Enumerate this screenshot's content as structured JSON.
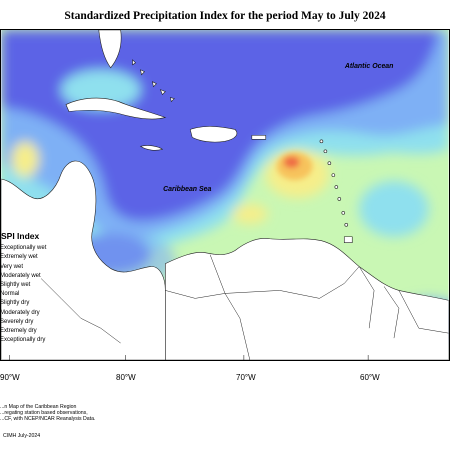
{
  "title": "Standardized Precipitation Index for the period May to July 2024",
  "map": {
    "ocean_label": "Atlantic Ocean",
    "sea_label": "Caribbean Sea",
    "colors": {
      "very_wet": "#5b64e6",
      "moderately_wet": "#7eb0f5",
      "slightly_wet": "#8fe0ee",
      "normal": "#c9f7b4",
      "slightly_dry": "#f6ee8a",
      "moderately_dry": "#f7c25c",
      "severely_dry": "#ef6d45",
      "land": "#ffffff"
    }
  },
  "x_axis": {
    "ticks": [
      "90°W",
      "80°W",
      "70°W",
      "60°W"
    ]
  },
  "legend": {
    "title": "SPI Index",
    "items": [
      "Exceptionally wet",
      "Extremely wet",
      "Very wet",
      "Moderately wet",
      "Slightly wet",
      "Normal",
      "Slightly dry",
      "Moderately dry",
      "Severely dry",
      "Extremely dry",
      "Exceptionally dry"
    ]
  },
  "footnote": {
    "lines": [
      "...n Map of the Caribbean Region",
      "...regating station based observations,",
      "...CF, with NCEP/NCAR Reanalysis Data."
    ]
  },
  "copyright": "CIMH July-2024"
}
